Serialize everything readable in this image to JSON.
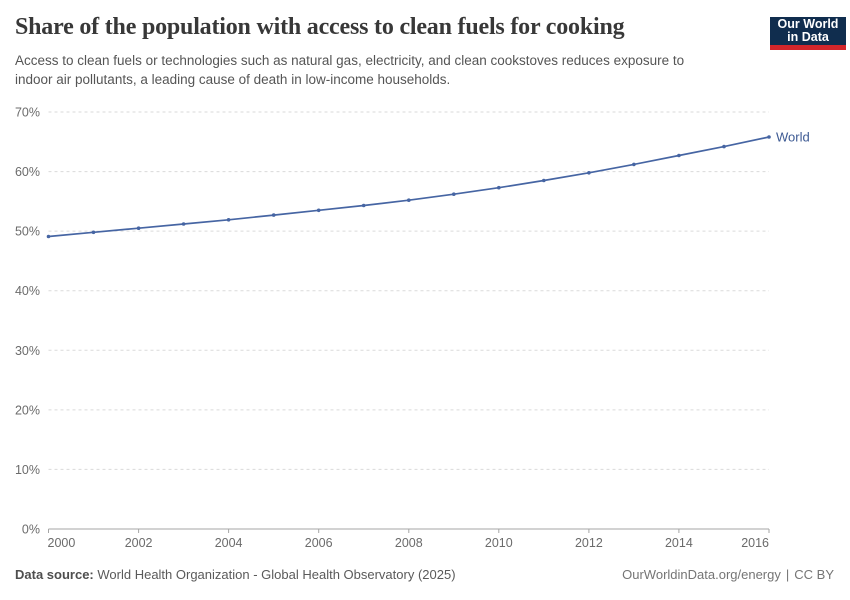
{
  "header": {
    "title": "Share of the population with access to clean fuels for cooking",
    "subtitle_line1": "Access to clean fuels or technologies such as natural gas, electricity, and clean cookstoves reduces exposure to",
    "subtitle_line2": "indoor air pollutants, a leading cause of death in low-income households.",
    "logo_line1": "Our World",
    "logo_line2": "in Data"
  },
  "footer": {
    "source_label": "Data source:",
    "source_text": "World Health Organization - Global Health Observatory (2025)",
    "link_text": "OurWorldinData.org/energy",
    "separator": "|",
    "license_text": "CC BY"
  },
  "colors": {
    "accent_line": "#4665a3",
    "series_label": "#3d5a93",
    "logo_bg": "#102d4e",
    "logo_underline": "#d3262b",
    "grid": "#dadada",
    "axis": "#a5a5a5",
    "tick_text": "#6b6b6b"
  },
  "chart_data": {
    "type": "line",
    "title": "Share of the population with access to clean fuels for cooking",
    "xlabel": "",
    "ylabel": "",
    "xlim": [
      2000,
      2016
    ],
    "ylim": [
      0,
      70
    ],
    "grid": "horizontal-dashed",
    "legend_position": "end-of-line",
    "y_ticks": [
      {
        "value": 0,
        "label": "0%"
      },
      {
        "value": 10,
        "label": "10%"
      },
      {
        "value": 20,
        "label": "20%"
      },
      {
        "value": 30,
        "label": "30%"
      },
      {
        "value": 40,
        "label": "40%"
      },
      {
        "value": 50,
        "label": "50%"
      },
      {
        "value": 60,
        "label": "60%"
      },
      {
        "value": 70,
        "label": "70%"
      }
    ],
    "x_ticks": [
      {
        "value": 2000,
        "label": "2000"
      },
      {
        "value": 2002,
        "label": "2002"
      },
      {
        "value": 2004,
        "label": "2004"
      },
      {
        "value": 2006,
        "label": "2006"
      },
      {
        "value": 2008,
        "label": "2008"
      },
      {
        "value": 2010,
        "label": "2010"
      },
      {
        "value": 2012,
        "label": "2012"
      },
      {
        "value": 2014,
        "label": "2014"
      },
      {
        "value": 2016,
        "label": "2016"
      }
    ],
    "series": [
      {
        "name": "World",
        "color": "#4665a3",
        "x": [
          2000,
          2001,
          2002,
          2003,
          2004,
          2005,
          2006,
          2007,
          2008,
          2009,
          2010,
          2011,
          2012,
          2013,
          2014,
          2015,
          2016
        ],
        "values": [
          49.1,
          49.8,
          50.5,
          51.2,
          51.9,
          52.7,
          53.5,
          54.3,
          55.2,
          56.2,
          57.3,
          58.5,
          59.8,
          61.2,
          62.7,
          64.2,
          65.8
        ]
      }
    ]
  }
}
